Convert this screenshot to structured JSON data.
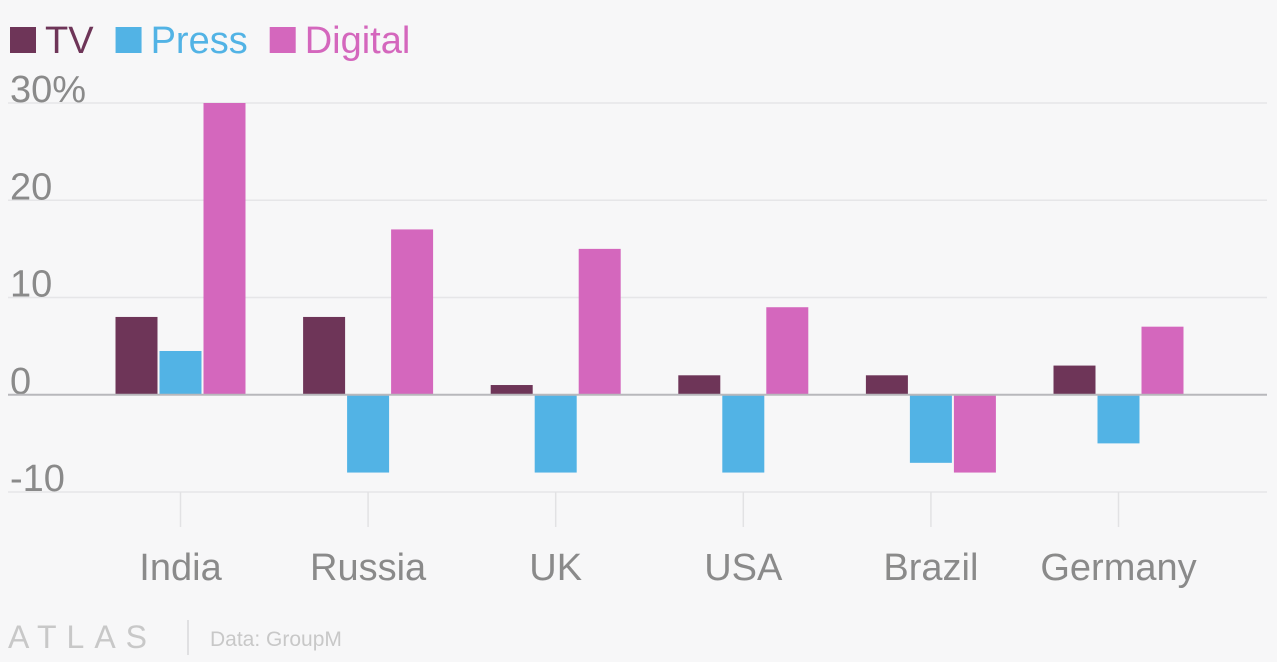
{
  "chart_data": {
    "type": "bar",
    "categories": [
      "India",
      "Russia",
      "UK",
      "USA",
      "Brazil",
      "Germany"
    ],
    "series": [
      {
        "name": "TV",
        "color": "#6e3558",
        "values": [
          8,
          8,
          1,
          2,
          2,
          3
        ]
      },
      {
        "name": "Press",
        "color": "#52b3e5",
        "values": [
          4.5,
          -8,
          -8,
          -8,
          -7,
          -5
        ]
      },
      {
        "name": "Digital",
        "color": "#d467bd",
        "values": [
          30,
          17,
          15,
          9,
          -8,
          7
        ]
      }
    ],
    "ylim": [
      -10,
      30
    ],
    "yticks": [
      30,
      20,
      10,
      0,
      -10
    ],
    "ytick_labels": [
      "30%",
      "20",
      "10",
      "0",
      "-10"
    ],
    "grid": true,
    "legend_position": "top-left",
    "xlabel": "",
    "ylabel": ""
  },
  "footer": {
    "logo": "ATLAS",
    "source": "Data: GroupM"
  }
}
